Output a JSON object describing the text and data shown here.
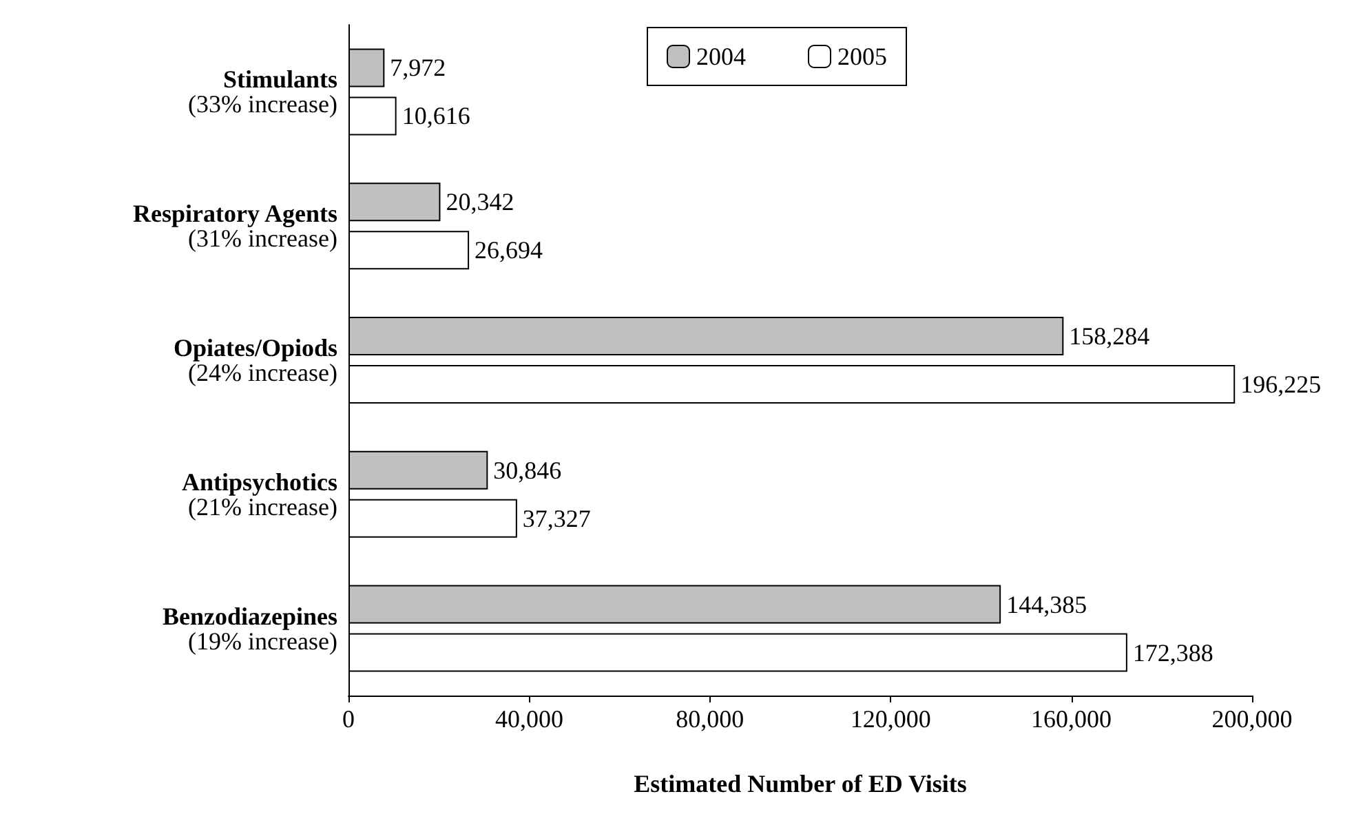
{
  "chart_data": {
    "type": "bar",
    "orientation": "horizontal",
    "xlabel": "Estimated Number of ED Visits",
    "categories": [
      "Stimulants\n(33% increase)",
      "Respiratory Agents\n(31% increase)",
      "Opiates/Opiods\n(24% increase)",
      "Antipsychotics\n(21% increase)",
      "Benzodiazepines\n(19% increase)"
    ],
    "series": [
      {
        "name": "2004",
        "color": "#c0c0c0",
        "values": [
          7972,
          20342,
          158284,
          30846,
          144385
        ],
        "value_labels": [
          "7,972",
          "20,342",
          "158,284",
          "30,846",
          "144,385"
        ]
      },
      {
        "name": "2005",
        "color": "#ffffff",
        "values": [
          10616,
          26694,
          196225,
          37327,
          172388
        ],
        "value_labels": [
          "10,616",
          "26,694",
          "196,225",
          "37,327",
          "172,388"
        ]
      }
    ],
    "xlim": [
      0,
      200000
    ],
    "xticks": [
      {
        "value": 0,
        "label": "0"
      },
      {
        "value": 40000,
        "label": "40,000"
      },
      {
        "value": 80000,
        "label": "80,000"
      },
      {
        "value": 120000,
        "label": "120,000"
      },
      {
        "value": 160000,
        "label": "160,000"
      },
      {
        "value": 200000,
        "label": "200,000"
      }
    ],
    "legend": "top",
    "grid": false
  }
}
